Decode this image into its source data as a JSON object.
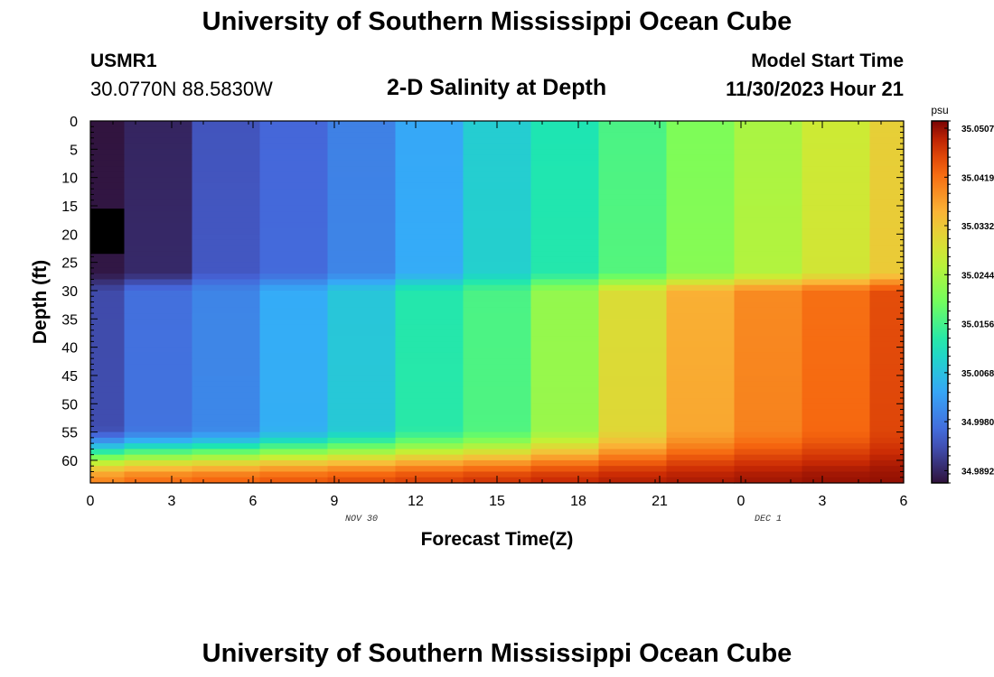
{
  "page": {
    "title": "University of Southern Mississippi Ocean Cube",
    "footer_title": "University of Southern Mississippi Ocean Cube"
  },
  "station": {
    "id": "USMR1",
    "coords": "30.0770N  88.5830W"
  },
  "plot_title": "2-D Salinity at Depth",
  "model": {
    "label": "Model Start Time",
    "time": "11/30/2023 Hour 21"
  },
  "chart_data": {
    "type": "heatmap",
    "title": "2-D Salinity at Depth",
    "xlabel": "Forecast Time(Z)",
    "ylabel": "Depth (ft)",
    "x_tick_labels": [
      "0",
      "3",
      "6",
      "9",
      "12",
      "15",
      "18",
      "21",
      "0",
      "3",
      "6"
    ],
    "x_range_hours": [
      0,
      36
    ],
    "date_labels": [
      {
        "text": "NOV 30",
        "at_hour": 12
      },
      {
        "text": "DEC 1",
        "at_hour": 30
      }
    ],
    "y_tick_labels": [
      "0",
      "5",
      "10",
      "15",
      "20",
      "25",
      "30",
      "35",
      "40",
      "45",
      "50",
      "55",
      "60"
    ],
    "y_range_ft": [
      0,
      64
    ],
    "colorbar": {
      "units": "psu",
      "tick_labels": [
        "35.0507",
        "35.0419",
        "35.0332",
        "35.0244",
        "35.0156",
        "35.0068",
        "34.9980",
        "34.9892"
      ],
      "range": [
        34.987,
        35.052
      ]
    },
    "columns": [
      {
        "start_hour": 0.0,
        "end_hour": 1.5,
        "surface": 34.9872,
        "deep": 34.993,
        "bottom": 35.04
      },
      {
        "start_hour": 1.5,
        "end_hour": 4.5,
        "surface": 34.989,
        "deep": 34.997,
        "bottom": 35.042
      },
      {
        "start_hour": 4.5,
        "end_hour": 7.5,
        "surface": 34.994,
        "deep": 34.9995,
        "bottom": 35.043
      },
      {
        "start_hour": 7.5,
        "end_hour": 10.5,
        "surface": 34.996,
        "deep": 35.004,
        "bottom": 35.044
      },
      {
        "start_hour": 10.5,
        "end_hour": 13.5,
        "surface": 34.999,
        "deep": 35.0075,
        "bottom": 35.045
      },
      {
        "start_hour": 13.5,
        "end_hour": 16.5,
        "surface": 35.0035,
        "deep": 35.0125,
        "bottom": 35.046
      },
      {
        "start_hour": 16.5,
        "end_hour": 19.5,
        "surface": 35.0085,
        "deep": 35.016,
        "bottom": 35.047
      },
      {
        "start_hour": 19.5,
        "end_hour": 22.5,
        "surface": 35.012,
        "deep": 35.0225,
        "bottom": 35.048
      },
      {
        "start_hour": 22.5,
        "end_hour": 25.5,
        "surface": 35.016,
        "deep": 35.03,
        "bottom": 35.049
      },
      {
        "start_hour": 25.5,
        "end_hour": 28.5,
        "surface": 35.0205,
        "deep": 35.036,
        "bottom": 35.0495
      },
      {
        "start_hour": 28.5,
        "end_hour": 31.5,
        "surface": 35.0245,
        "deep": 35.0395,
        "bottom": 35.05
      },
      {
        "start_hour": 31.5,
        "end_hour": 34.5,
        "surface": 35.028,
        "deep": 35.042,
        "bottom": 35.0505
      },
      {
        "start_hour": 34.5,
        "end_hour": 36.0,
        "surface": 35.032,
        "deep": 35.045,
        "bottom": 35.0507
      }
    ],
    "halocline_depth_ft": 28.5,
    "bottom_layer_start_ft": 54,
    "missing_region": {
      "start_hour": 0.0,
      "end_hour": 1.5,
      "depth_top_ft": 15.5,
      "depth_bottom_ft": 23.5
    },
    "missing_color": "#000000"
  }
}
